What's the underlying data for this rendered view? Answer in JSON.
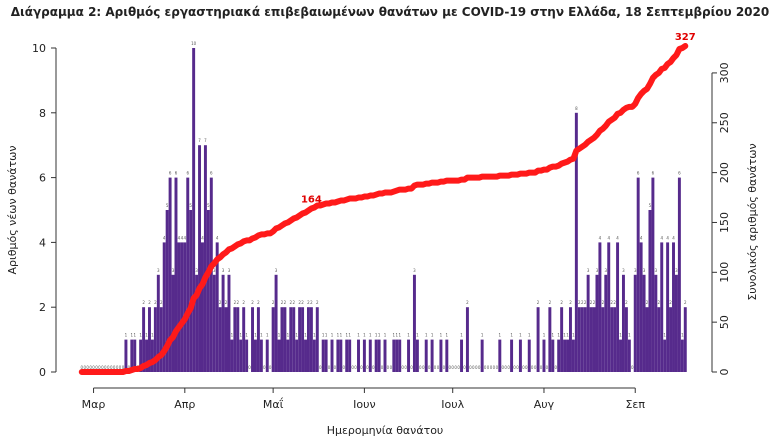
{
  "chart_data": {
    "type": "bar",
    "title": "Διάγραμμα 2: Αριθμός εργαστηριακά επιβεβαιωμένων θανάτων με COVID-19 στην Ελλάδα, 18 Σεπτεμβρίου 2020",
    "xlabel": "Ημερομηνία θανάτου",
    "ylabel": "Αριθμός νέων θανάτων",
    "y2label": "Συνολικός αριθμός θανάτων",
    "xlim": [
      -4,
      210
    ],
    "xticks": [
      {
        "value": 4,
        "label": "Μαρ"
      },
      {
        "value": 35,
        "label": "Απρ"
      },
      {
        "value": 65,
        "label": "Μαΐ"
      },
      {
        "value": 96,
        "label": "Ιουν"
      },
      {
        "value": 126,
        "label": "Ιουλ"
      },
      {
        "value": 157,
        "label": "Αυγ"
      },
      {
        "value": 188,
        "label": "Σεπ"
      }
    ],
    "ylim": [
      0,
      10
    ],
    "yticks": [
      0,
      2,
      4,
      6,
      8,
      10
    ],
    "y2lim": [
      0,
      325
    ],
    "y2ticks": [
      0,
      50,
      100,
      150,
      200,
      250,
      300
    ],
    "x": [
      0,
      1,
      2,
      3,
      4,
      5,
      6,
      7,
      8,
      9,
      10,
      11,
      12,
      13,
      14,
      15,
      16,
      17,
      18,
      19,
      20,
      21,
      22,
      23,
      24,
      25,
      26,
      27,
      28,
      29,
      30,
      31,
      32,
      33,
      34,
      35,
      36,
      37,
      38,
      39,
      40,
      41,
      42,
      43,
      44,
      45,
      46,
      47,
      48,
      49,
      50,
      51,
      52,
      53,
      54,
      55,
      56,
      57,
      58,
      59,
      60,
      61,
      62,
      63,
      64,
      65,
      66,
      67,
      68,
      69,
      70,
      71,
      72,
      73,
      74,
      75,
      76,
      77,
      78,
      79,
      80,
      81,
      82,
      83,
      84,
      85,
      86,
      87,
      88,
      89,
      90,
      91,
      92,
      93,
      94,
      95,
      96,
      97,
      98,
      99,
      100,
      101,
      102,
      103,
      104,
      105,
      106,
      107,
      108,
      109,
      110,
      111,
      112,
      113,
      114,
      115,
      116,
      117,
      118,
      119,
      120,
      121,
      122,
      123,
      124,
      125,
      126,
      127,
      128,
      129,
      130,
      131,
      132,
      133,
      134,
      135,
      136,
      137,
      138,
      139,
      140,
      141,
      142,
      143,
      144,
      145,
      146,
      147,
      148,
      149,
      150,
      151,
      152,
      153,
      154,
      155,
      156,
      157,
      158,
      159,
      160,
      161,
      162,
      163,
      164,
      165,
      166,
      167,
      168,
      169,
      170,
      171,
      172,
      173,
      174,
      175,
      176,
      177,
      178,
      179,
      180,
      181,
      182,
      183,
      184,
      185,
      186,
      187,
      188,
      189,
      190,
      191,
      192,
      193,
      194,
      195,
      196,
      197,
      198,
      199,
      200,
      201,
      202,
      203,
      204,
      205
    ],
    "series": [
      {
        "type": "bar",
        "color": "#562a8c",
        "values": [
          0,
          0,
          0,
          0,
          0,
          0,
          0,
          0,
          0,
          0,
          0,
          0,
          0,
          0,
          0,
          1,
          0,
          1,
          1,
          0,
          1,
          2,
          1,
          2,
          1,
          2,
          3,
          2,
          4,
          5,
          6,
          3,
          6,
          4,
          4,
          4,
          6,
          5,
          10,
          3,
          7,
          4,
          7,
          5,
          6,
          3,
          4,
          2,
          3,
          2,
          3,
          1,
          2,
          2,
          1,
          2,
          1,
          0,
          2,
          1,
          2,
          1,
          0,
          1,
          0,
          2,
          3,
          1,
          2,
          2,
          1,
          2,
          2,
          1,
          2,
          2,
          1,
          2,
          2,
          1,
          2,
          0,
          1,
          1,
          0,
          1,
          0,
          1,
          1,
          0,
          1,
          1,
          0,
          0,
          1,
          0,
          1,
          0,
          1,
          0,
          1,
          1,
          0,
          1,
          0,
          0,
          1,
          1,
          1,
          0,
          0,
          1,
          0,
          3,
          1,
          0,
          0,
          1,
          0,
          1,
          0,
          0,
          1,
          0,
          1,
          0,
          0,
          0,
          0,
          1,
          0,
          2,
          0,
          0,
          0,
          0,
          1,
          0,
          0,
          0,
          0,
          0,
          1,
          0,
          0,
          0,
          1,
          0,
          0,
          1,
          0,
          0,
          1,
          0,
          0,
          2,
          0,
          1,
          0,
          2,
          1,
          0,
          1,
          2,
          1,
          1,
          2,
          1,
          8,
          2,
          2,
          2,
          3,
          2,
          2,
          3,
          4,
          2,
          3,
          4,
          2,
          2,
          4,
          1,
          3,
          2,
          1,
          0,
          3,
          6,
          4,
          3,
          2,
          5,
          6,
          3,
          2,
          4,
          1,
          4,
          2,
          4,
          3,
          6,
          1,
          2
        ]
      },
      {
        "type": "line",
        "axis": "y2",
        "color": "#ff1a1a",
        "values": [
          0,
          0,
          0,
          0,
          0,
          0,
          0,
          0,
          0,
          0,
          0,
          0,
          0,
          0,
          0,
          1,
          1,
          2,
          3,
          3,
          4,
          6,
          7,
          9,
          10,
          12,
          15,
          17,
          21,
          26,
          32,
          35,
          41,
          45,
          49,
          53,
          59,
          64,
          74,
          77,
          84,
          88,
          95,
          100,
          106,
          109,
          113,
          115,
          118,
          120,
          123,
          124,
          126,
          128,
          129,
          131,
          132,
          132,
          134,
          135,
          137,
          138,
          138,
          139,
          139,
          141,
          144,
          145,
          147,
          149,
          150,
          152,
          154,
          155,
          157,
          159,
          160,
          162,
          164,
          165,
          167,
          167,
          168,
          169,
          169,
          170,
          170,
          171,
          172,
          172,
          173,
          174,
          174,
          174,
          175,
          175,
          176,
          176,
          177,
          177,
          178,
          179,
          179,
          180,
          180,
          180,
          181,
          182,
          183,
          183,
          183,
          184,
          184,
          187,
          188,
          188,
          188,
          189,
          189,
          190,
          190,
          190,
          191,
          191,
          192,
          192,
          192,
          192,
          192,
          193,
          193,
          195,
          195,
          195,
          195,
          195,
          196,
          196,
          196,
          196,
          196,
          196,
          197,
          197,
          197,
          197,
          198,
          198,
          198,
          199,
          199,
          199,
          200,
          200,
          200,
          202,
          202,
          203,
          203,
          205,
          206,
          206,
          207,
          209,
          210,
          211,
          213,
          214,
          222,
          224,
          226,
          228,
          231,
          233,
          235,
          238,
          242,
          244,
          247,
          251,
          253,
          255,
          259,
          260,
          263,
          265,
          266,
          266,
          269,
          275,
          279,
          282,
          284,
          289,
          295,
          298,
          300,
          304,
          305,
          309,
          311,
          315,
          318,
          324,
          325,
          327
        ],
        "value_labels": [
          null,
          null,
          null,
          null,
          null,
          null,
          null,
          null,
          null,
          null,
          null,
          null,
          null,
          null,
          null,
          null,
          null,
          null,
          null,
          null,
          null,
          null,
          null,
          null,
          null,
          null,
          null,
          null,
          null,
          null,
          null,
          null,
          null,
          null,
          null,
          null,
          null,
          null,
          null,
          null,
          null,
          null,
          null,
          null,
          null,
          null,
          null,
          null,
          null,
          null,
          null,
          null,
          null,
          null,
          null,
          null,
          null,
          null,
          null,
          null,
          null,
          null,
          null,
          null,
          null,
          null,
          null,
          null,
          null,
          null,
          null,
          null,
          null,
          null,
          null,
          null,
          null,
          null,
          "164",
          null,
          null,
          null,
          null,
          null,
          null,
          null,
          null,
          null,
          null,
          null,
          null,
          null,
          null,
          null,
          null,
          null,
          null,
          null,
          null,
          null,
          null,
          null,
          null,
          null,
          null,
          null,
          null,
          null,
          null,
          null,
          null,
          null,
          null,
          null,
          null,
          null,
          null,
          null,
          null,
          null,
          null,
          null,
          null,
          null,
          null,
          null,
          null,
          null,
          null,
          null,
          null,
          null,
          null,
          null,
          null,
          null,
          null,
          null,
          null,
          null,
          null,
          null,
          null,
          null,
          null,
          null,
          null,
          null,
          null,
          null,
          null,
          null,
          null,
          null,
          null,
          null,
          null,
          null,
          null,
          null,
          null,
          null,
          null,
          null,
          null,
          null,
          null,
          null,
          null,
          null,
          null,
          null,
          null,
          null,
          null,
          null,
          null,
          null,
          null,
          null,
          null,
          null,
          null,
          null,
          null,
          null,
          null,
          null,
          null,
          null,
          null,
          null,
          null,
          null,
          null,
          null,
          null,
          null,
          null,
          null,
          null,
          null,
          null,
          null,
          null,
          "327"
        ]
      }
    ]
  }
}
